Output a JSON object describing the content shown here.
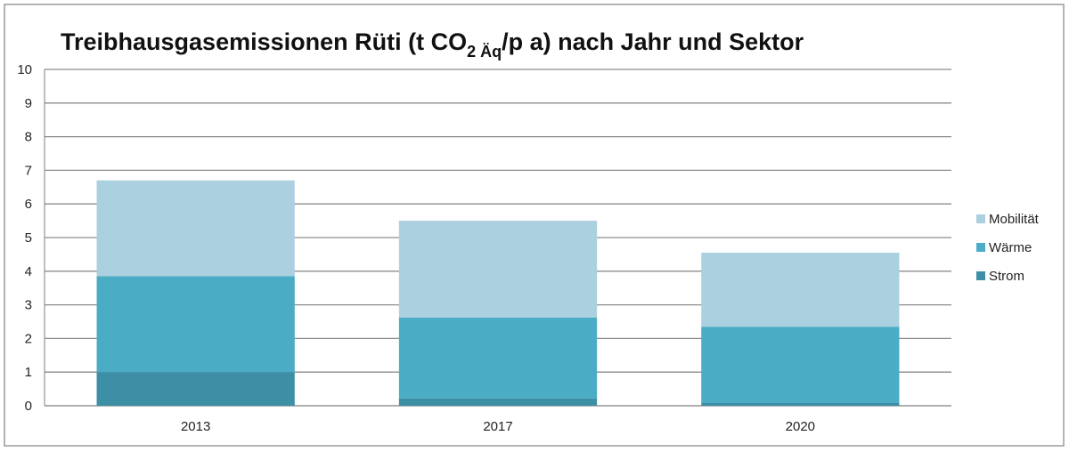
{
  "chart_data": {
    "type": "bar",
    "stacked": true,
    "title": {
      "main": "Treibhausgasemissionen Rüti  (t CO",
      "sub": "2 Äq",
      "rest": "/p a) nach Jahr und Sektor"
    },
    "categories": [
      "2013",
      "2017",
      "2020"
    ],
    "series": [
      {
        "name": "Strom",
        "values": [
          1.0,
          0.22,
          0.08
        ],
        "color": "#3d8fa6"
      },
      {
        "name": "Wärme",
        "values": [
          2.85,
          2.4,
          2.27
        ],
        "color": "#4bacc6"
      },
      {
        "name": "Mobilität",
        "values": [
          2.85,
          2.88,
          2.2
        ],
        "color": "#abd0df"
      }
    ],
    "ylim": [
      0,
      10
    ],
    "yticks": [
      "0",
      "1",
      "2",
      "3",
      "4",
      "5",
      "6",
      "7",
      "8",
      "9",
      "10"
    ],
    "grid": true,
    "legend": {
      "position": "right",
      "order": [
        "Mobilität",
        "Wärme",
        "Strom"
      ]
    }
  }
}
